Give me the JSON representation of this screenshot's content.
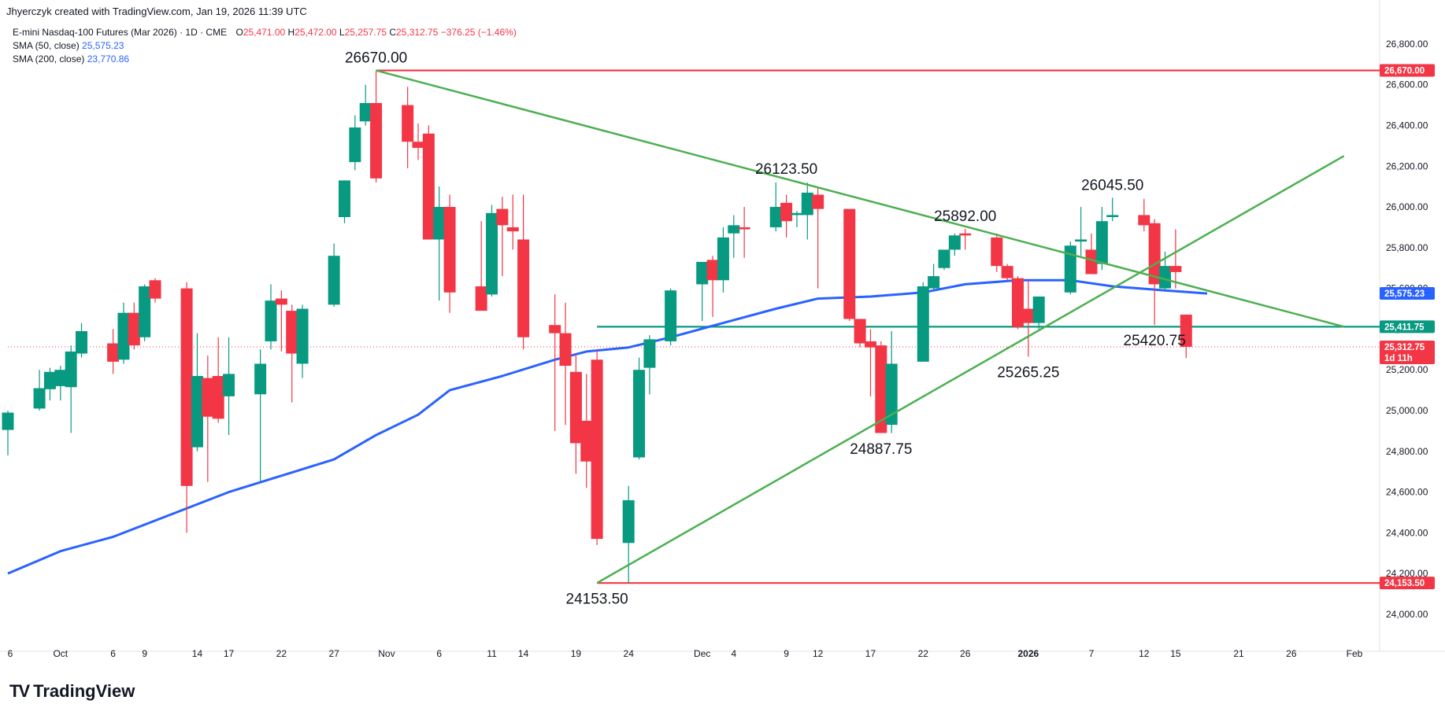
{
  "header": {
    "credit": "Jhyerczyk created with TradingView.com, Jan 19, 2026 11:39 UTC",
    "symbol": "E-mini Nasdaq-100 Futures (Mar 2026) · 1D · CME",
    "ohlc": {
      "o_label": "O",
      "o": "25,471.00",
      "h_label": "H",
      "h": "25,472.00",
      "l_label": "L",
      "l": "25,257.75",
      "c_label": "C",
      "c": "25,312.75",
      "change": "−376.25 (−1.46%)"
    },
    "sma50_label": "SMA (50, close)",
    "sma50_value": "25,575.23",
    "sma200_label": "SMA (200, close)",
    "sma200_value": "23,770.86"
  },
  "footer": {
    "brand": "TradingView",
    "logo": "TV"
  },
  "colors": {
    "up": "#089981",
    "down": "#f23645",
    "sma": "#2962ff",
    "trend": "#4caf50",
    "level": "#f23645",
    "support": "#089981"
  },
  "chart_data": {
    "type": "candlestick",
    "y_range": [
      23880,
      26900
    ],
    "y_ticks": [
      "24,000.00",
      "24,200.00",
      "24,400.00",
      "24,600.00",
      "24,800.00",
      "25,000.00",
      "25,200.00",
      "25,400.00",
      "25,600.00",
      "25,800.00",
      "26,000.00",
      "26,200.00",
      "26,400.00",
      "26,600.00",
      "26,800.00"
    ],
    "y_tick_values": [
      24000,
      24200,
      24400,
      24600,
      24800,
      25000,
      25200,
      25400,
      25600,
      25800,
      26000,
      26200,
      26400,
      26600,
      26800
    ],
    "x_ticks": [
      {
        "label": "6",
        "d": "2025-10-06"
      },
      {
        "label": "Oct",
        "d": "2025-10-01"
      },
      {
        "label": "6",
        "d": "2025-10-06"
      },
      {
        "label": "9",
        "d": "2025-10-09"
      },
      {
        "label": "14",
        "d": "2025-10-14"
      },
      {
        "label": "17",
        "d": "2025-10-17"
      },
      {
        "label": "22",
        "d": "2025-10-22"
      },
      {
        "label": "27",
        "d": "2025-10-27"
      },
      {
        "label": "Nov",
        "d": "2025-11-01"
      },
      {
        "label": "6",
        "d": "2025-11-06"
      },
      {
        "label": "11",
        "d": "2025-11-11"
      },
      {
        "label": "14",
        "d": "2025-11-14"
      },
      {
        "label": "19",
        "d": "2025-11-19"
      },
      {
        "label": "24",
        "d": "2025-11-24"
      },
      {
        "label": "Dec",
        "d": "2025-12-01"
      },
      {
        "label": "4",
        "d": "2025-12-04"
      },
      {
        "label": "9",
        "d": "2025-12-09"
      },
      {
        "label": "12",
        "d": "2025-12-12"
      },
      {
        "label": "17",
        "d": "2025-12-17"
      },
      {
        "label": "22",
        "d": "2025-12-22"
      },
      {
        "label": "26",
        "d": "2025-12-26"
      },
      {
        "label": "2026",
        "d": "2026-01-01"
      },
      {
        "label": "7",
        "d": "2026-01-07"
      },
      {
        "label": "12",
        "d": "2026-01-12"
      },
      {
        "label": "15",
        "d": "2026-01-15"
      },
      {
        "label": "21",
        "d": "2026-01-21"
      },
      {
        "label": "26",
        "d": "2026-01-26"
      },
      {
        "label": "Feb",
        "d": "2026-02-01"
      }
    ],
    "candles": [
      {
        "d": "2025-09-26",
        "o": 24905,
        "h": 25000,
        "l": 24780,
        "c": 24990
      },
      {
        "d": "2025-09-29",
        "o": 25010,
        "h": 25200,
        "l": 25000,
        "c": 25110
      },
      {
        "d": "2025-09-30",
        "o": 25105,
        "h": 25210,
        "l": 25050,
        "c": 25190
      },
      {
        "d": "2025-10-01",
        "o": 25120,
        "h": 25220,
        "l": 25050,
        "c": 25200
      },
      {
        "d": "2025-10-02",
        "o": 25115,
        "h": 25320,
        "l": 24890,
        "c": 25290
      },
      {
        "d": "2025-10-03",
        "o": 25280,
        "h": 25430,
        "l": 25260,
        "c": 25390
      },
      {
        "d": "2025-10-06",
        "o": 25330,
        "h": 25400,
        "l": 25180,
        "c": 25240
      },
      {
        "d": "2025-10-07",
        "o": 25250,
        "h": 25530,
        "l": 25230,
        "c": 25480
      },
      {
        "d": "2025-10-08",
        "o": 25480,
        "h": 25530,
        "l": 25300,
        "c": 25320
      },
      {
        "d": "2025-10-09",
        "o": 25360,
        "h": 25620,
        "l": 25340,
        "c": 25610
      },
      {
        "d": "2025-10-10",
        "o": 25640,
        "h": 25650,
        "l": 25530,
        "c": 25550
      },
      {
        "d": "2025-10-13",
        "o": 25600,
        "h": 25630,
        "l": 24400,
        "c": 24630
      },
      {
        "d": "2025-10-14",
        "o": 24820,
        "h": 25380,
        "l": 24800,
        "c": 25170
      },
      {
        "d": "2025-10-15",
        "o": 25160,
        "h": 25270,
        "l": 24650,
        "c": 24970
      },
      {
        "d": "2025-10-16",
        "o": 25170,
        "h": 25360,
        "l": 24940,
        "c": 24960
      },
      {
        "d": "2025-10-17",
        "o": 25070,
        "h": 25360,
        "l": 24880,
        "c": 25180
      },
      {
        "d": "2025-10-20",
        "o": 25080,
        "h": 25300,
        "l": 24650,
        "c": 25230
      },
      {
        "d": "2025-10-21",
        "o": 25340,
        "h": 25620,
        "l": 25300,
        "c": 25540
      },
      {
        "d": "2025-10-22",
        "o": 25550,
        "h": 25590,
        "l": 25290,
        "c": 25520
      },
      {
        "d": "2025-10-23",
        "o": 25490,
        "h": 25520,
        "l": 25040,
        "c": 25280
      },
      {
        "d": "2025-10-24",
        "o": 25230,
        "h": 25520,
        "l": 25160,
        "c": 25500
      },
      {
        "d": "2025-10-27",
        "o": 25520,
        "h": 25820,
        "l": 25510,
        "c": 25760
      },
      {
        "d": "2025-10-28",
        "o": 25950,
        "h": 26130,
        "l": 25920,
        "c": 26130
      },
      {
        "d": "2025-10-29",
        "o": 26220,
        "h": 26450,
        "l": 26180,
        "c": 26390
      },
      {
        "d": "2025-10-30",
        "o": 26420,
        "h": 26600,
        "l": 26400,
        "c": 26510
      },
      {
        "d": "2025-10-31",
        "o": 26510,
        "h": 26670,
        "l": 26120,
        "c": 26140
      },
      {
        "d": "2025-11-03",
        "o": 26500,
        "h": 26590,
        "l": 26190,
        "c": 26320
      },
      {
        "d": "2025-11-04",
        "o": 26320,
        "h": 26410,
        "l": 26230,
        "c": 26290
      },
      {
        "d": "2025-11-05",
        "o": 26360,
        "h": 26400,
        "l": 25850,
        "c": 25840
      },
      {
        "d": "2025-11-06",
        "o": 25840,
        "h": 26100,
        "l": 25540,
        "c": 26000
      },
      {
        "d": "2025-11-07",
        "o": 26000,
        "h": 26060,
        "l": 25480,
        "c": 25580
      },
      {
        "d": "2025-11-10",
        "o": 25610,
        "h": 25930,
        "l": 25500,
        "c": 25490
      },
      {
        "d": "2025-11-11",
        "o": 25570,
        "h": 26010,
        "l": 25560,
        "c": 25970
      },
      {
        "d": "2025-11-12",
        "o": 25990,
        "h": 26050,
        "l": 25660,
        "c": 25910
      },
      {
        "d": "2025-11-13",
        "o": 25900,
        "h": 26060,
        "l": 25790,
        "c": 25880
      },
      {
        "d": "2025-11-14",
        "o": 25840,
        "h": 26060,
        "l": 25300,
        "c": 25360
      },
      {
        "d": "2025-11-17",
        "o": 25420,
        "h": 25570,
        "l": 24900,
        "c": 25380
      },
      {
        "d": "2025-11-18",
        "o": 25380,
        "h": 25530,
        "l": 24930,
        "c": 25220
      },
      {
        "d": "2025-11-19",
        "o": 25190,
        "h": 25280,
        "l": 24690,
        "c": 24840
      },
      {
        "d": "2025-11-20",
        "o": 24950,
        "h": 25180,
        "l": 24620,
        "c": 24750
      },
      {
        "d": "2025-11-21",
        "o": 25250,
        "h": 25300,
        "l": 24340,
        "c": 24370
      },
      {
        "d": "2025-11-24",
        "o": 24350,
        "h": 24630,
        "l": 24150,
        "c": 24560
      },
      {
        "d": "2025-11-25",
        "o": 24770,
        "h": 25260,
        "l": 24760,
        "c": 25200
      },
      {
        "d": "2025-11-26",
        "o": 25210,
        "h": 25370,
        "l": 25080,
        "c": 25350
      },
      {
        "d": "2025-11-28",
        "o": 25340,
        "h": 25600,
        "l": 25320,
        "c": 25590
      },
      {
        "d": "2025-12-01",
        "o": 25620,
        "h": 25730,
        "l": 25440,
        "c": 25730
      },
      {
        "d": "2025-12-02",
        "o": 25740,
        "h": 25760,
        "l": 25460,
        "c": 25640
      },
      {
        "d": "2025-12-03",
        "o": 25640,
        "h": 25900,
        "l": 25580,
        "c": 25850
      },
      {
        "d": "2025-12-04",
        "o": 25870,
        "h": 25960,
        "l": 25750,
        "c": 25910
      },
      {
        "d": "2025-12-05",
        "o": 25900,
        "h": 26000,
        "l": 25750,
        "c": 25890
      },
      {
        "d": "2025-12-08",
        "o": 25900,
        "h": 26120,
        "l": 25880,
        "c": 26000
      },
      {
        "d": "2025-12-09",
        "o": 26020,
        "h": 26060,
        "l": 25850,
        "c": 25930
      },
      {
        "d": "2025-12-10",
        "o": 25960,
        "h": 25980,
        "l": 25900,
        "c": 25970
      },
      {
        "d": "2025-12-11",
        "o": 25960,
        "h": 26120,
        "l": 25840,
        "c": 26070
      },
      {
        "d": "2025-12-12",
        "o": 26060,
        "h": 26100,
        "l": 25600,
        "c": 25990
      },
      {
        "d": "2025-12-15",
        "o": 25990,
        "h": 25990,
        "l": 25440,
        "c": 25450
      },
      {
        "d": "2025-12-16",
        "o": 25450,
        "h": 25450,
        "l": 25310,
        "c": 25330
      },
      {
        "d": "2025-12-17",
        "o": 25340,
        "h": 25400,
        "l": 25070,
        "c": 25310
      },
      {
        "d": "2025-12-18",
        "o": 25320,
        "h": 25340,
        "l": 24890,
        "c": 24890
      },
      {
        "d": "2025-12-19",
        "o": 24930,
        "h": 25390,
        "l": 24890,
        "c": 25230
      },
      {
        "d": "2025-12-22",
        "o": 25240,
        "h": 25630,
        "l": 25240,
        "c": 25610
      },
      {
        "d": "2025-12-23",
        "o": 25600,
        "h": 25720,
        "l": 25590,
        "c": 25660
      },
      {
        "d": "2025-12-24",
        "o": 25700,
        "h": 25790,
        "l": 25690,
        "c": 25790
      },
      {
        "d": "2025-12-25",
        "o": 25790,
        "h": 25870,
        "l": 25760,
        "c": 25860
      },
      {
        "d": "2025-12-26",
        "o": 25870,
        "h": 25892,
        "l": 25790,
        "c": 25860
      },
      {
        "d": "2025-12-29",
        "o": 25850,
        "h": 25870,
        "l": 25680,
        "c": 25710
      },
      {
        "d": "2025-12-30",
        "o": 25710,
        "h": 25720,
        "l": 25640,
        "c": 25650
      },
      {
        "d": "2025-12-31",
        "o": 25650,
        "h": 25660,
        "l": 25400,
        "c": 25410
      },
      {
        "d": "2026-01-01",
        "o": 25500,
        "h": 25640,
        "l": 25265,
        "c": 25430
      },
      {
        "d": "2026-01-02",
        "o": 25430,
        "h": 25560,
        "l": 25400,
        "c": 25560
      },
      {
        "d": "2026-01-05",
        "o": 25580,
        "h": 25830,
        "l": 25570,
        "c": 25810
      },
      {
        "d": "2026-01-06",
        "o": 25830,
        "h": 26000,
        "l": 25760,
        "c": 25840
      },
      {
        "d": "2026-01-07",
        "o": 25790,
        "h": 25870,
        "l": 25680,
        "c": 25670
      },
      {
        "d": "2026-01-08",
        "o": 25720,
        "h": 26000,
        "l": 25690,
        "c": 25930
      },
      {
        "d": "2026-01-09",
        "o": 25950,
        "h": 26045,
        "l": 25930,
        "c": 25960
      },
      {
        "d": "2026-01-12",
        "o": 25960,
        "h": 26040,
        "l": 25880,
        "c": 25910
      },
      {
        "d": "2026-01-13",
        "o": 25920,
        "h": 25940,
        "l": 25420,
        "c": 25620
      },
      {
        "d": "2026-01-14",
        "o": 25600,
        "h": 25780,
        "l": 25590,
        "c": 25710
      },
      {
        "d": "2026-01-15",
        "o": 25710,
        "h": 25890,
        "l": 25600,
        "c": 25680
      },
      {
        "d": "2026-01-16",
        "o": 25471,
        "h": 25472,
        "l": 25258,
        "c": 25313
      }
    ],
    "sma50": [
      [
        "2025-09-26",
        24200
      ],
      [
        "2025-10-01",
        24310
      ],
      [
        "2025-10-06",
        24380
      ],
      [
        "2025-10-09",
        24440
      ],
      [
        "2025-10-14",
        24540
      ],
      [
        "2025-10-17",
        24600
      ],
      [
        "2025-10-22",
        24680
      ],
      [
        "2025-10-27",
        24760
      ],
      [
        "2025-10-31",
        24880
      ],
      [
        "2025-11-04",
        24980
      ],
      [
        "2025-11-07",
        25100
      ],
      [
        "2025-11-12",
        25170
      ],
      [
        "2025-11-17",
        25250
      ],
      [
        "2025-11-20",
        25290
      ],
      [
        "2025-11-24",
        25310
      ],
      [
        "2025-11-28",
        25360
      ],
      [
        "2025-12-03",
        25430
      ],
      [
        "2025-12-08",
        25500
      ],
      [
        "2025-12-12",
        25550
      ],
      [
        "2025-12-17",
        25560
      ],
      [
        "2025-12-22",
        25580
      ],
      [
        "2025-12-26",
        25620
      ],
      [
        "2025-12-31",
        25640
      ],
      [
        "2026-01-05",
        25640
      ],
      [
        "2026-01-09",
        25610
      ],
      [
        "2026-01-14",
        25590
      ],
      [
        "2026-01-18",
        25575
      ]
    ],
    "annotations": [
      {
        "label": "26670.00",
        "d": "2025-10-31",
        "y": 26670,
        "pos": "above"
      },
      {
        "label": "26123.50",
        "d": "2025-12-09",
        "y": 26123,
        "pos": "above"
      },
      {
        "label": "25892.00",
        "d": "2025-12-26",
        "y": 25892,
        "pos": "above"
      },
      {
        "label": "26045.50",
        "d": "2026-01-09",
        "y": 26045,
        "pos": "above"
      },
      {
        "label": "24153.50",
        "d": "2025-11-21",
        "y": 24153,
        "pos": "below"
      },
      {
        "label": "24887.75",
        "d": "2025-12-18",
        "y": 24888,
        "pos": "below"
      },
      {
        "label": "25265.25",
        "d": "2026-01-01",
        "y": 25265,
        "pos": "below"
      },
      {
        "label": "25420.75",
        "d": "2026-01-13",
        "y": 25420,
        "pos": "below"
      }
    ],
    "levels": [
      {
        "name": "high-level",
        "y": 26670,
        "from": "2025-10-31",
        "label": "26,670.00",
        "color": "#f23645"
      },
      {
        "name": "low-level",
        "y": 24153.5,
        "from": "2025-11-21",
        "label": "24,153.50",
        "color": "#f23645"
      },
      {
        "name": "support-level",
        "y": 25411.75,
        "from": "2025-11-21",
        "label": "25,411.75",
        "color": "#089981"
      }
    ],
    "trendlines": [
      {
        "name": "descending-trendline",
        "from": [
          "2025-10-31",
          26670
        ],
        "to": [
          "2026-01-31",
          25411.75
        ]
      },
      {
        "name": "ascending-trendline",
        "from": [
          "2025-11-21",
          24153.5
        ],
        "to": [
          "2026-01-31",
          26250
        ]
      }
    ],
    "price_badges": [
      {
        "name": "sma50-badge",
        "y": 25575.23,
        "label": "25,575.23",
        "color": "#2962ff"
      },
      {
        "name": "last-price-badge",
        "y": 25312.75,
        "label": "25,312.75",
        "sub": "1d 11h",
        "color": "#f23645"
      }
    ]
  }
}
